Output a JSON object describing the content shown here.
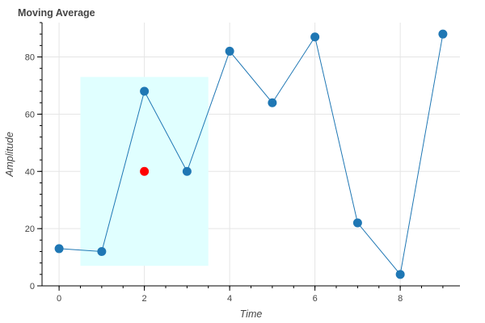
{
  "chart_data": {
    "type": "line",
    "title": "Moving Average",
    "xlabel": "Time",
    "ylabel": "Amplitude",
    "xlim": [
      -0.4,
      9.4
    ],
    "ylim": [
      0,
      92
    ],
    "xticks": [
      0,
      2,
      4,
      6,
      8
    ],
    "yticks": [
      0,
      20,
      40,
      60,
      80
    ],
    "grid": true,
    "series": [
      {
        "color": "#1f77b4",
        "x": [
          0,
          1,
          2,
          3,
          4,
          5,
          6,
          7,
          8,
          9
        ],
        "y": [
          13,
          12,
          68,
          40,
          82,
          64,
          87,
          22,
          4,
          88
        ]
      }
    ],
    "highlight_point": {
      "x": 2,
      "y": 40,
      "color": "#ff0000"
    },
    "window_box": {
      "x0": 0.5,
      "x1": 3.5,
      "y0": 7,
      "y1": 73,
      "color": "#e0ffff"
    }
  }
}
